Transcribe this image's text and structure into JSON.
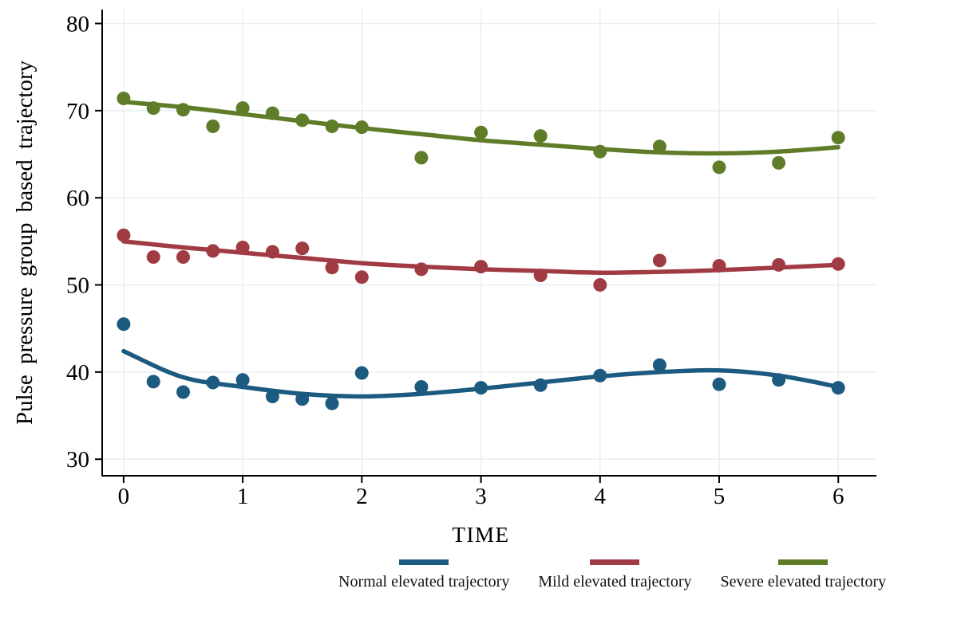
{
  "chart_data": {
    "type": "scatter",
    "title": "",
    "xlabel": "TIME",
    "ylabel": "Pulse pressure group based trajectory",
    "xlim": [
      -0.18,
      6.32
    ],
    "ylim": [
      28.1,
      81.6
    ],
    "x_ticks": [
      0,
      1,
      2,
      3,
      4,
      5,
      6
    ],
    "y_ticks": [
      30,
      40,
      50,
      60,
      70,
      80
    ],
    "grid": true,
    "legend_position": "bottom",
    "axis_color": "#000000",
    "grid_color": "#eaf0f5",
    "background": "#ffffff",
    "x": [
      0,
      0.25,
      0.5,
      0.75,
      1,
      1.25,
      1.5,
      1.75,
      2,
      2.5,
      3,
      3.5,
      4,
      4.5,
      5,
      5.5,
      6
    ],
    "trend_x": [
      0,
      0.5,
      1,
      1.5,
      2,
      2.5,
      3,
      3.5,
      4,
      4.5,
      5,
      5.5,
      6
    ],
    "series": [
      {
        "name": "Normal elevated trajectory",
        "color": "#1c5a80",
        "points": [
          45.5,
          38.9,
          37.7,
          38.8,
          39.1,
          37.2,
          36.9,
          36.4,
          39.9,
          38.3,
          38.2,
          38.5,
          39.6,
          40.8,
          38.6,
          39.1,
          38.2
        ],
        "trend": [
          42.4,
          39.4,
          38.3,
          37.5,
          37.2,
          37.5,
          38.1,
          38.8,
          39.5,
          40.0,
          40.2,
          39.6,
          38.3
        ]
      },
      {
        "name": "Mild elevated trajectory",
        "color": "#a03b44",
        "points": [
          55.7,
          53.2,
          53.2,
          53.9,
          54.3,
          53.8,
          54.2,
          52.0,
          50.9,
          51.8,
          52.1,
          51.1,
          50.0,
          52.8,
          52.2,
          52.3,
          52.4
        ],
        "trend": [
          55.0,
          54.3,
          53.7,
          53.1,
          52.5,
          52.1,
          51.8,
          51.6,
          51.4,
          51.5,
          51.7,
          52.0,
          52.3
        ]
      },
      {
        "name": "Severe elevated trajectory",
        "color": "#5f7d28",
        "points": [
          71.4,
          70.3,
          70.1,
          68.2,
          70.3,
          69.7,
          68.9,
          68.2,
          68.1,
          64.6,
          67.5,
          67.1,
          65.3,
          65.9,
          63.5,
          64.0,
          66.9
        ],
        "trend": [
          71.0,
          70.4,
          69.6,
          68.8,
          68.0,
          67.3,
          66.6,
          66.1,
          65.6,
          65.2,
          65.1,
          65.3,
          65.8
        ]
      }
    ]
  }
}
